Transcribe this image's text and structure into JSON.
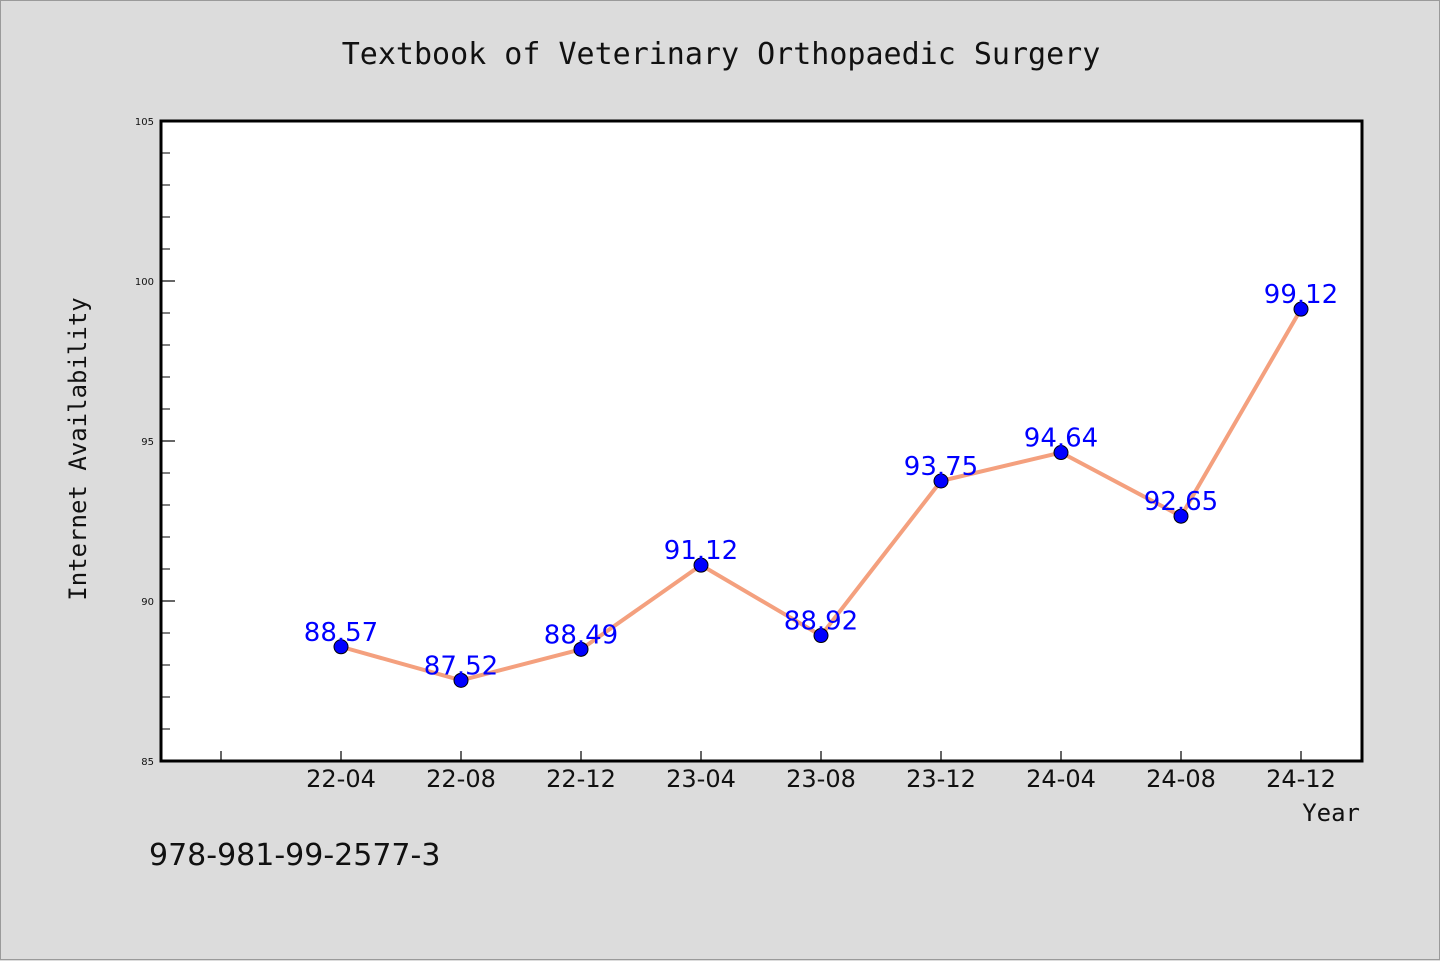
{
  "chart_data": {
    "type": "line",
    "title": "Textbook of Veterinary Orthopaedic Surgery",
    "xlabel": "Year",
    "ylabel": "Internet Availability",
    "categories": [
      "22-04",
      "22-08",
      "22-12",
      "23-04",
      "23-08",
      "23-12",
      "24-04",
      "24-08",
      "24-12"
    ],
    "values": [
      88.57,
      87.52,
      88.49,
      91.12,
      88.92,
      93.75,
      94.64,
      92.65,
      99.12
    ],
    "data_labels": [
      "88.57",
      "87.52",
      "88.49",
      "91.12",
      "88.92",
      "93.75",
      "94.64",
      "92.65",
      "99.12"
    ],
    "ylim": [
      85,
      105
    ],
    "yticks": [
      85,
      90,
      95,
      100,
      105
    ],
    "grid": false,
    "legend": "none",
    "colors": {
      "line": "#f4a07e",
      "marker": "#0000ff",
      "label": "#0000ff",
      "background": "#dcdcdc",
      "plot_area": "#ffffff"
    }
  },
  "footnote": "978-981-99-2577-3"
}
